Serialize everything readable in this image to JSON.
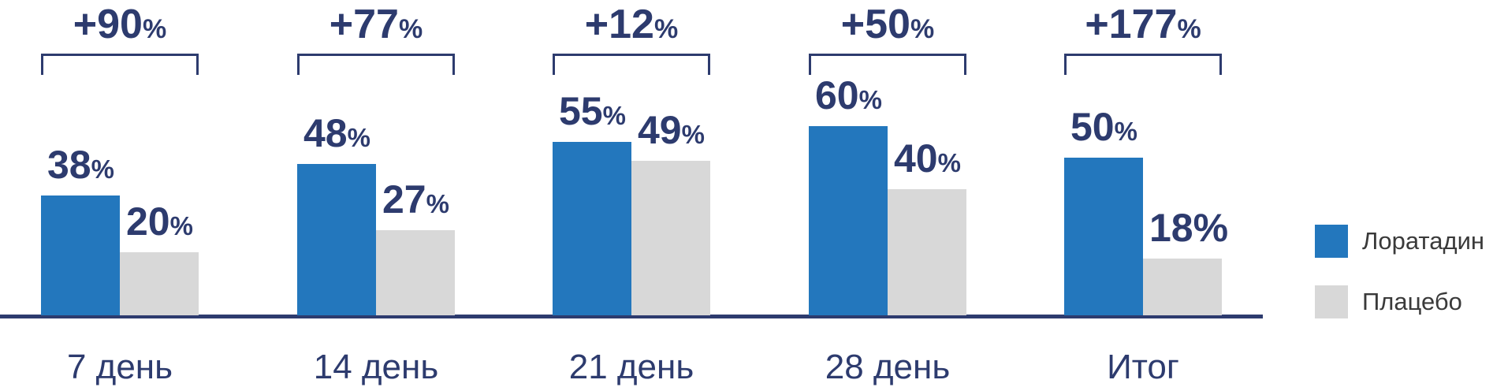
{
  "chart_data": {
    "type": "bar",
    "title": "",
    "categories": [
      "7 день",
      "14 день",
      "21 день",
      "28 день",
      "Итог"
    ],
    "series": [
      {
        "name": "Лоратадин",
        "color": "#2377BD",
        "values": [
          38,
          48,
          55,
          60,
          50
        ]
      },
      {
        "name": "Плацебо",
        "color": "#D8D8D8",
        "values": [
          20,
          27,
          49,
          40,
          18
        ]
      }
    ],
    "diff_labels": [
      "+90",
      "+77",
      "+12",
      "+50",
      "+177"
    ],
    "value_suffix": "%",
    "full_size_suffix_labels": [
      {
        "series": 1,
        "category": 4
      }
    ],
    "ylim": [
      0,
      62
    ],
    "grid": false,
    "legend_position": "right",
    "accent_navy": "#2D3B6E",
    "legend_text_color": "#3A3A3A"
  },
  "legend": {
    "items": [
      {
        "label": "Лоратадин",
        "color": "#2377BD"
      },
      {
        "label": "Плацебо",
        "color": "#D8D8D8"
      }
    ]
  }
}
